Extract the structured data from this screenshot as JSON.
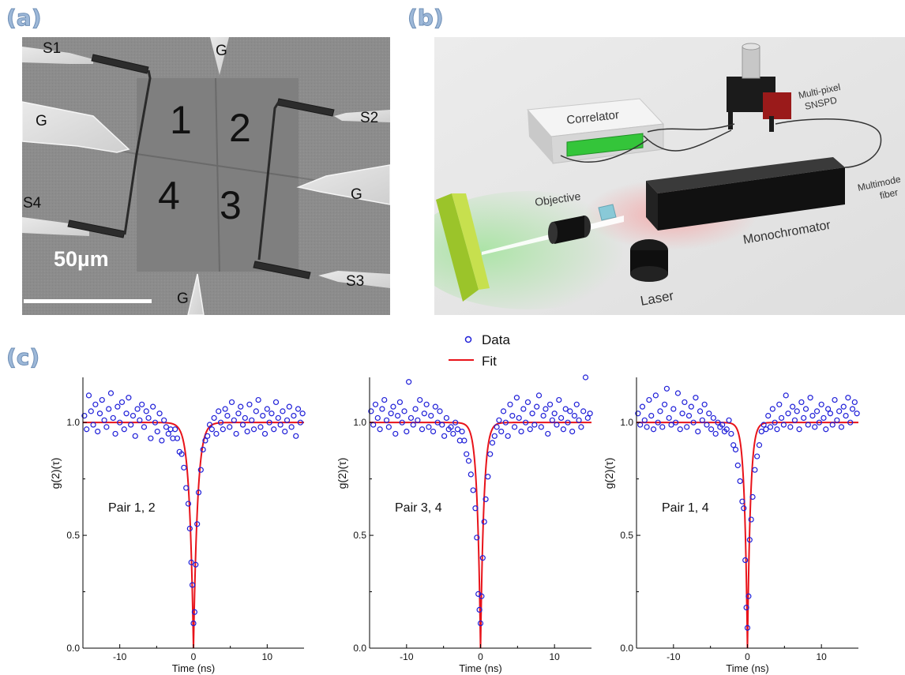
{
  "panel_labels": {
    "a": "(a)",
    "b": "(b)",
    "c": "(c)"
  },
  "sem": {
    "pad_labels": [
      "S1",
      "G",
      "G",
      "S2",
      "S4",
      "G",
      "S3",
      "G"
    ],
    "region_labels": [
      "1",
      "2",
      "4",
      "3"
    ],
    "scale_bar": "50µm"
  },
  "setup": {
    "labels": {
      "correlator": "Correlator",
      "snspd_line1": "Multi-pixel",
      "snspd_line2": "SNSPD",
      "fiber_line1": "Multimode",
      "fiber_line2": "fiber",
      "objective": "Objective",
      "monochromator": "Monochromator",
      "laser": "Laser"
    }
  },
  "legend": {
    "data": "Data",
    "fit": "Fit"
  },
  "colors": {
    "data": "#1f1fd8",
    "fit": "#e8131a",
    "panel_label": "#9db8d8"
  },
  "chart_data": [
    {
      "type": "scatter",
      "annotation": "Pair 1, 2",
      "xlabel": "Time (ns)",
      "ylabel": "g(2)(τ)",
      "xlim": [
        -15,
        15
      ],
      "ylim": [
        0,
        1.2
      ],
      "xticks": [
        -10,
        0,
        10
      ],
      "yticks": [
        0.0,
        0.5,
        1.0
      ],
      "ytick_labels": [
        "0.0",
        "0.5",
        "1.0"
      ],
      "fit": {
        "model": "1 - a*exp(-|t|/tau)",
        "a": 1.0,
        "tau": 0.55
      },
      "series": [
        {
          "name": "Data",
          "x": [
            -14.8,
            -14.5,
            -14.2,
            -13.9,
            -13.6,
            -13.3,
            -13.0,
            -12.7,
            -12.4,
            -12.1,
            -11.8,
            -11.5,
            -11.2,
            -10.9,
            -10.6,
            -10.3,
            -10.0,
            -9.7,
            -9.4,
            -9.1,
            -8.8,
            -8.5,
            -8.2,
            -7.9,
            -7.6,
            -7.3,
            -7.0,
            -6.7,
            -6.4,
            -6.1,
            -5.8,
            -5.5,
            -5.2,
            -4.9,
            -4.6,
            -4.3,
            -4.0,
            -3.7,
            -3.4,
            -3.1,
            -2.8,
            -2.5,
            -2.2,
            -1.9,
            -1.6,
            -1.3,
            -1.0,
            -0.7,
            -0.5,
            -0.3,
            -0.15,
            0.0,
            0.15,
            0.3,
            0.5,
            0.7,
            1.0,
            1.3,
            1.6,
            1.9,
            2.2,
            2.5,
            2.8,
            3.1,
            3.4,
            3.7,
            4.0,
            4.3,
            4.6,
            4.9,
            5.2,
            5.5,
            5.8,
            6.1,
            6.4,
            6.7,
            7.0,
            7.3,
            7.6,
            7.9,
            8.2,
            8.5,
            8.8,
            9.1,
            9.4,
            9.7,
            10.0,
            10.3,
            10.6,
            10.9,
            11.2,
            11.5,
            11.8,
            12.1,
            12.4,
            12.7,
            13.0,
            13.3,
            13.6,
            13.9,
            14.2,
            14.5,
            14.8
          ],
          "y": [
            1.03,
            0.97,
            1.12,
            1.05,
            0.99,
            1.08,
            0.96,
            1.04,
            1.1,
            1.01,
            0.98,
            1.06,
            1.13,
            1.02,
            0.95,
            1.07,
            1.0,
            1.09,
            0.97,
            1.04,
            1.11,
            0.99,
            1.03,
            0.94,
            1.06,
            1.01,
            1.08,
            0.98,
            1.05,
            1.02,
            0.93,
            1.07,
            1.0,
            0.96,
            1.04,
            0.92,
            1.01,
            0.98,
            0.95,
            0.97,
            0.93,
            0.97,
            0.93,
            0.87,
            0.86,
            0.8,
            0.71,
            0.64,
            0.53,
            0.38,
            0.28,
            0.11,
            0.16,
            0.37,
            0.55,
            0.69,
            0.79,
            0.88,
            0.92,
            0.94,
            0.99,
            0.97,
            1.02,
            0.95,
            1.05,
            1.0,
            0.97,
            1.06,
            1.03,
            0.98,
            1.09,
            1.01,
            0.95,
            1.04,
            1.07,
            0.99,
            1.02,
            0.96,
            1.08,
            1.01,
            0.97,
            1.05,
            1.1,
            0.98,
            1.03,
            0.95,
            1.06,
            1.0,
            1.04,
            0.97,
            1.09,
            1.02,
            0.99,
            1.05,
            0.96,
            1.01,
            1.07,
            0.98,
            1.03,
            0.94,
            1.06,
            1.0,
            1.04
          ]
        }
      ]
    },
    {
      "type": "scatter",
      "annotation": "Pair 3, 4",
      "xlabel": "Time (ns)",
      "ylabel": "g(2)(τ)",
      "xlim": [
        -15,
        15
      ],
      "ylim": [
        0,
        1.2
      ],
      "xticks": [
        -10,
        0,
        10
      ],
      "yticks": [
        0.0,
        0.5,
        1.0
      ],
      "ytick_labels": [
        "0.0",
        "0.5",
        "1.0"
      ],
      "fit": {
        "model": "1 - a*exp(-|t|/tau)",
        "a": 1.0,
        "tau": 0.45
      },
      "series": [
        {
          "name": "Data",
          "x": [
            -14.8,
            -14.5,
            -14.2,
            -13.9,
            -13.6,
            -13.3,
            -13.0,
            -12.7,
            -12.4,
            -12.1,
            -11.8,
            -11.5,
            -11.2,
            -10.9,
            -10.6,
            -10.3,
            -10.0,
            -9.7,
            -9.4,
            -9.1,
            -8.8,
            -8.5,
            -8.2,
            -7.9,
            -7.6,
            -7.3,
            -7.0,
            -6.7,
            -6.4,
            -6.1,
            -5.8,
            -5.5,
            -5.2,
            -4.9,
            -4.6,
            -4.3,
            -4.0,
            -3.7,
            -3.4,
            -3.1,
            -2.8,
            -2.5,
            -2.2,
            -1.9,
            -1.6,
            -1.3,
            -1.0,
            -0.7,
            -0.5,
            -0.3,
            -0.15,
            0.0,
            0.15,
            0.3,
            0.5,
            0.7,
            1.0,
            1.3,
            1.6,
            1.9,
            2.2,
            2.5,
            2.8,
            3.1,
            3.4,
            3.7,
            4.0,
            4.3,
            4.6,
            4.9,
            5.2,
            5.5,
            5.8,
            6.1,
            6.4,
            6.7,
            7.0,
            7.3,
            7.6,
            7.9,
            8.2,
            8.5,
            8.8,
            9.1,
            9.4,
            9.7,
            10.0,
            10.3,
            10.6,
            10.9,
            11.2,
            11.5,
            11.8,
            12.1,
            12.4,
            12.7,
            13.0,
            13.3,
            13.6,
            13.9,
            14.2,
            14.5,
            14.8
          ],
          "y": [
            1.05,
            0.99,
            1.08,
            1.02,
            0.97,
            1.06,
            1.1,
            1.01,
            0.98,
            1.04,
            1.07,
            0.95,
            1.03,
            1.09,
            1.0,
            1.05,
            0.96,
            1.18,
            1.02,
            0.99,
            1.06,
            1.01,
            1.1,
            0.97,
            1.04,
            1.08,
            0.98,
            1.03,
            0.96,
            1.07,
            1.0,
            1.05,
            0.99,
            0.94,
            1.02,
            0.97,
            0.98,
            0.95,
            1.0,
            0.97,
            0.92,
            0.96,
            0.92,
            0.86,
            0.83,
            0.77,
            0.7,
            0.62,
            0.49,
            0.24,
            0.17,
            0.11,
            0.23,
            0.4,
            0.56,
            0.66,
            0.76,
            0.86,
            0.91,
            0.94,
            0.98,
            1.01,
            0.96,
            1.05,
            1.0,
            0.94,
            1.08,
            1.03,
            0.98,
            1.11,
            1.02,
            0.96,
            1.06,
            1.0,
            1.09,
            0.97,
            1.04,
            0.99,
            1.07,
            1.12,
            0.98,
            1.03,
            1.06,
            0.95,
            1.08,
            1.01,
            1.04,
            0.99,
            1.1,
            1.02,
            0.97,
            1.06,
            1.0,
            1.05,
            0.96,
            1.03,
            1.08,
            1.01,
            0.98,
            1.05,
            1.2,
            1.02,
            1.04
          ]
        }
      ]
    },
    {
      "type": "scatter",
      "annotation": "Pair 1, 4",
      "xlabel": "Time (ns)",
      "ylabel": "g(2)(τ)",
      "xlim": [
        -15,
        15
      ],
      "ylim": [
        0,
        1.2
      ],
      "xticks": [
        -10,
        0,
        10
      ],
      "yticks": [
        0.0,
        0.5,
        1.0
      ],
      "ytick_labels": [
        "0.0",
        "0.5",
        "1.0"
      ],
      "fit": {
        "model": "1 - a*exp(-|t|/tau)",
        "a": 1.0,
        "tau": 0.4
      },
      "series": [
        {
          "name": "Data",
          "x": [
            -14.8,
            -14.5,
            -14.2,
            -13.9,
            -13.6,
            -13.3,
            -13.0,
            -12.7,
            -12.4,
            -12.1,
            -11.8,
            -11.5,
            -11.2,
            -10.9,
            -10.6,
            -10.3,
            -10.0,
            -9.7,
            -9.4,
            -9.1,
            -8.8,
            -8.5,
            -8.2,
            -7.9,
            -7.6,
            -7.3,
            -7.0,
            -6.7,
            -6.4,
            -6.1,
            -5.8,
            -5.5,
            -5.2,
            -4.9,
            -4.6,
            -4.3,
            -4.0,
            -3.7,
            -3.4,
            -3.1,
            -2.8,
            -2.5,
            -2.2,
            -1.9,
            -1.6,
            -1.3,
            -1.0,
            -0.7,
            -0.5,
            -0.3,
            -0.15,
            0.0,
            0.15,
            0.3,
            0.5,
            0.7,
            1.0,
            1.3,
            1.6,
            1.9,
            2.2,
            2.5,
            2.8,
            3.1,
            3.4,
            3.7,
            4.0,
            4.3,
            4.6,
            4.9,
            5.2,
            5.5,
            5.8,
            6.1,
            6.4,
            6.7,
            7.0,
            7.3,
            7.6,
            7.9,
            8.2,
            8.5,
            8.8,
            9.1,
            9.4,
            9.7,
            10.0,
            10.3,
            10.6,
            10.9,
            11.2,
            11.5,
            11.8,
            12.1,
            12.4,
            12.7,
            13.0,
            13.3,
            13.6,
            13.9,
            14.2,
            14.5,
            14.8
          ],
          "y": [
            1.04,
            0.99,
            1.07,
            1.01,
            0.98,
            1.1,
            1.03,
            0.97,
            1.12,
            1.0,
            1.05,
            0.98,
            1.08,
            1.15,
            1.02,
            0.99,
            1.06,
            1.0,
            1.13,
            0.97,
            1.04,
            1.09,
            0.98,
            1.03,
            1.07,
            1.0,
            1.11,
            0.96,
            1.05,
            1.01,
            1.08,
            0.99,
            1.04,
            0.97,
            1.02,
            0.95,
            1.0,
            0.98,
            0.99,
            0.96,
            0.97,
            1.01,
            0.95,
            0.9,
            0.88,
            0.81,
            0.74,
            0.65,
            0.62,
            0.39,
            0.18,
            0.09,
            0.23,
            0.48,
            0.57,
            0.67,
            0.79,
            0.85,
            0.9,
            0.96,
            0.99,
            0.97,
            1.03,
            0.98,
            1.06,
            1.0,
            0.97,
            1.08,
            1.02,
            0.99,
            1.12,
            1.04,
            0.98,
            1.07,
            1.01,
            1.05,
            0.97,
            1.09,
            1.02,
            1.06,
            0.99,
            1.11,
            1.03,
            0.98,
            1.05,
            1.0,
            1.08,
            1.02,
            0.97,
            1.06,
            1.04,
            0.99,
            1.1,
            1.01,
            1.05,
            0.98,
            1.07,
            1.03,
            1.11,
            1.0,
            1.06,
            1.09,
            1.04
          ]
        }
      ]
    }
  ]
}
